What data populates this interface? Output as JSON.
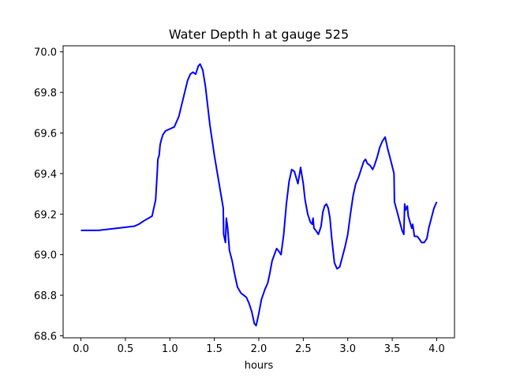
{
  "chart_data": {
    "type": "line",
    "title": "Water Depth h at gauge 525",
    "xlabel": "hours",
    "ylabel": "",
    "xlim": [
      -0.2,
      4.2
    ],
    "ylim": [
      68.59,
      70.03
    ],
    "x_ticks": [
      0.0,
      0.5,
      1.0,
      1.5,
      2.0,
      2.5,
      3.0,
      3.5,
      4.0
    ],
    "x_tick_labels": [
      "0.0",
      "0.5",
      "1.0",
      "1.5",
      "2.0",
      "2.5",
      "3.0",
      "3.5",
      "4.0"
    ],
    "y_ticks": [
      68.6,
      68.8,
      69.0,
      69.2,
      69.4,
      69.6,
      69.8,
      70.0
    ],
    "y_tick_labels": [
      "68.6",
      "68.8",
      "69.0",
      "69.2",
      "69.4",
      "69.6",
      "69.8",
      "70.0"
    ],
    "grid": false,
    "line_color": "#0000ff",
    "series": [
      {
        "x": [
          0.0,
          0.2,
          0.4,
          0.6,
          0.65,
          0.72,
          0.8,
          0.84,
          0.86,
          0.865,
          0.88,
          0.89,
          0.9,
          0.92,
          0.95,
          1.0,
          1.05,
          1.1,
          1.15,
          1.2,
          1.23,
          1.26,
          1.29,
          1.32,
          1.34,
          1.37,
          1.4,
          1.45,
          1.5,
          1.55,
          1.6,
          1.605,
          1.625,
          1.635,
          1.65,
          1.67,
          1.7,
          1.73,
          1.76,
          1.8,
          1.83,
          1.86,
          1.89,
          1.92,
          1.95,
          1.97,
          2.0,
          2.03,
          2.07,
          2.1,
          2.12,
          2.15,
          2.2,
          2.22,
          2.25,
          2.28,
          2.31,
          2.34,
          2.37,
          2.4,
          2.42,
          2.44,
          2.47,
          2.5,
          2.52,
          2.55,
          2.58,
          2.6,
          2.61,
          2.62,
          2.64,
          2.67,
          2.7,
          2.72,
          2.74,
          2.76,
          2.78,
          2.8,
          2.82,
          2.85,
          2.88,
          2.91,
          2.94,
          2.97,
          3.0,
          3.03,
          3.06,
          3.09,
          3.12,
          3.15,
          3.18,
          3.2,
          3.22,
          3.25,
          3.28,
          3.3,
          3.33,
          3.36,
          3.39,
          3.42,
          3.45,
          3.48,
          3.52,
          3.525,
          3.55,
          3.58,
          3.61,
          3.63,
          3.64,
          3.65,
          3.67,
          3.68,
          3.7,
          3.72,
          3.73,
          3.75,
          3.78,
          3.8,
          3.83,
          3.86,
          3.89,
          3.91,
          3.94,
          3.97,
          4.0
        ],
        "y": [
          69.12,
          69.12,
          69.13,
          69.14,
          69.15,
          69.17,
          69.19,
          69.27,
          69.42,
          69.47,
          69.49,
          69.54,
          69.56,
          69.59,
          69.61,
          69.62,
          69.63,
          69.68,
          69.77,
          69.86,
          69.89,
          69.9,
          69.89,
          69.93,
          69.94,
          69.91,
          69.83,
          69.64,
          69.49,
          69.36,
          69.23,
          69.1,
          69.06,
          69.18,
          69.13,
          69.02,
          68.97,
          68.9,
          68.84,
          68.81,
          68.8,
          68.79,
          68.76,
          68.72,
          68.66,
          68.65,
          68.71,
          68.78,
          68.83,
          68.86,
          68.9,
          68.97,
          69.03,
          69.02,
          69.0,
          69.1,
          69.25,
          69.36,
          69.42,
          69.41,
          69.38,
          69.35,
          69.43,
          69.35,
          69.27,
          69.2,
          69.16,
          69.15,
          69.18,
          69.13,
          69.12,
          69.1,
          69.14,
          69.21,
          69.24,
          69.25,
          69.23,
          69.18,
          69.08,
          68.96,
          68.93,
          68.94,
          68.99,
          69.04,
          69.1,
          69.2,
          69.29,
          69.35,
          69.38,
          69.42,
          69.46,
          69.47,
          69.45,
          69.44,
          69.42,
          69.44,
          69.48,
          69.53,
          69.56,
          69.58,
          69.52,
          69.47,
          69.4,
          69.26,
          69.22,
          69.17,
          69.12,
          69.1,
          69.25,
          69.22,
          69.24,
          69.19,
          69.16,
          69.13,
          69.15,
          69.09,
          69.09,
          69.08,
          69.06,
          69.06,
          69.08,
          69.13,
          69.18,
          69.23,
          69.26
        ]
      }
    ]
  }
}
